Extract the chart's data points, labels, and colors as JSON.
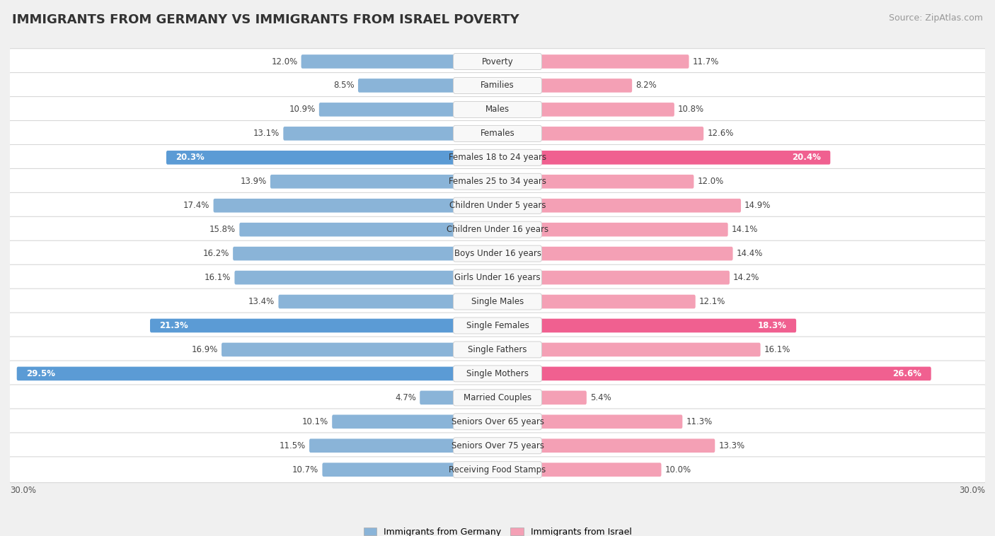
{
  "title": "IMMIGRANTS FROM GERMANY VS IMMIGRANTS FROM ISRAEL POVERTY",
  "source": "Source: ZipAtlas.com",
  "categories": [
    "Poverty",
    "Families",
    "Males",
    "Females",
    "Females 18 to 24 years",
    "Females 25 to 34 years",
    "Children Under 5 years",
    "Children Under 16 years",
    "Boys Under 16 years",
    "Girls Under 16 years",
    "Single Males",
    "Single Females",
    "Single Fathers",
    "Single Mothers",
    "Married Couples",
    "Seniors Over 65 years",
    "Seniors Over 75 years",
    "Receiving Food Stamps"
  ],
  "germany_values": [
    12.0,
    8.5,
    10.9,
    13.1,
    20.3,
    13.9,
    17.4,
    15.8,
    16.2,
    16.1,
    13.4,
    21.3,
    16.9,
    29.5,
    4.7,
    10.1,
    11.5,
    10.7
  ],
  "israel_values": [
    11.7,
    8.2,
    10.8,
    12.6,
    20.4,
    12.0,
    14.9,
    14.1,
    14.4,
    14.2,
    12.1,
    18.3,
    16.1,
    26.6,
    5.4,
    11.3,
    13.3,
    10.0
  ],
  "germany_color": "#8ab4d8",
  "israel_color": "#f4a0b5",
  "germany_highlight_color": "#5b9bd5",
  "israel_highlight_color": "#f06090",
  "highlight_rows": [
    4,
    11,
    13
  ],
  "max_val": 30.0,
  "bg_color": "#f0f0f0",
  "row_bg_color": "#ffffff",
  "title_fontsize": 13,
  "source_fontsize": 9,
  "bar_label_fontsize": 8.5,
  "category_fontsize": 8.5
}
